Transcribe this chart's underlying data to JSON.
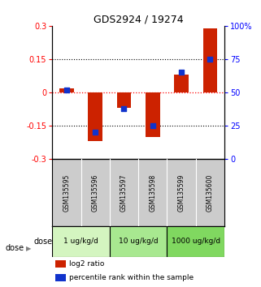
{
  "title": "GDS2924 / 19274",
  "samples": [
    "GSM135595",
    "GSM135596",
    "GSM135597",
    "GSM135598",
    "GSM135599",
    "GSM135600"
  ],
  "log2_ratio": [
    0.02,
    -0.22,
    -0.07,
    -0.2,
    0.08,
    0.29
  ],
  "percentile_rank": [
    52,
    20,
    38,
    25,
    65,
    75
  ],
  "dose_groups": [
    {
      "label": "1 ug/kg/d",
      "start": 0,
      "end": 2,
      "color": "#d4f5c0"
    },
    {
      "label": "10 ug/kg/d",
      "start": 2,
      "end": 4,
      "color": "#a8e890"
    },
    {
      "label": "1000 ug/kg/d",
      "start": 4,
      "end": 6,
      "color": "#80d860"
    }
  ],
  "bar_color": "#cc2200",
  "dot_color": "#1133cc",
  "ylim_left": [
    -0.3,
    0.3
  ],
  "ylim_right": [
    0,
    100
  ],
  "yticks_left": [
    -0.3,
    -0.15,
    0,
    0.15,
    0.3
  ],
  "yticks_right": [
    0,
    25,
    50,
    75,
    100
  ],
  "legend_red": "log2 ratio",
  "legend_blue": "percentile rank within the sample",
  "dose_label": "dose",
  "background_plot": "#ffffff",
  "background_sample": "#cccccc",
  "bar_width": 0.5,
  "dot_size": 25
}
